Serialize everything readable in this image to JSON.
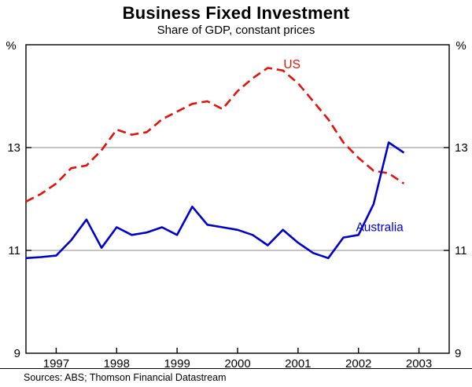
{
  "chart_data": {
    "type": "line",
    "title": "Business Fixed Investment",
    "subtitle": "Share of GDP, constant prices",
    "unit": "%",
    "source": "Sources: ABS; Thomson Financial Datastream",
    "xlim": [
      1996.5,
      2003.5
    ],
    "ylim": [
      9,
      15
    ],
    "yticks": [
      9,
      11,
      13
    ],
    "gridlines": [
      11,
      13
    ],
    "xticks": [
      1997,
      1998,
      1999,
      2000,
      2001,
      2002,
      2003
    ],
    "x_start": 1996.5,
    "x_step": 0.25,
    "grid": true,
    "legend_position": "inline-labels",
    "series": [
      {
        "name": "US",
        "color": "#e3120b",
        "style": "dashed",
        "label_x": 2000.9,
        "label_y": 14.62,
        "values": [
          11.95,
          12.1,
          12.3,
          12.6,
          12.65,
          12.95,
          13.35,
          13.25,
          13.3,
          13.55,
          13.7,
          13.85,
          13.9,
          13.75,
          14.1,
          14.35,
          14.55,
          14.5,
          14.25,
          13.9,
          13.55,
          13.1,
          12.8,
          12.55,
          12.5,
          12.3
        ]
      },
      {
        "name": "Australia",
        "color": "#0000cd",
        "style": "solid",
        "label_x": 2002.35,
        "label_y": 11.45,
        "values": [
          10.85,
          10.87,
          10.9,
          11.2,
          11.6,
          11.05,
          11.45,
          11.3,
          11.35,
          11.45,
          11.3,
          11.85,
          11.5,
          11.45,
          11.4,
          11.3,
          11.1,
          11.4,
          11.15,
          10.95,
          10.85,
          11.25,
          11.3,
          11.9,
          13.1,
          12.9
        ]
      }
    ]
  }
}
